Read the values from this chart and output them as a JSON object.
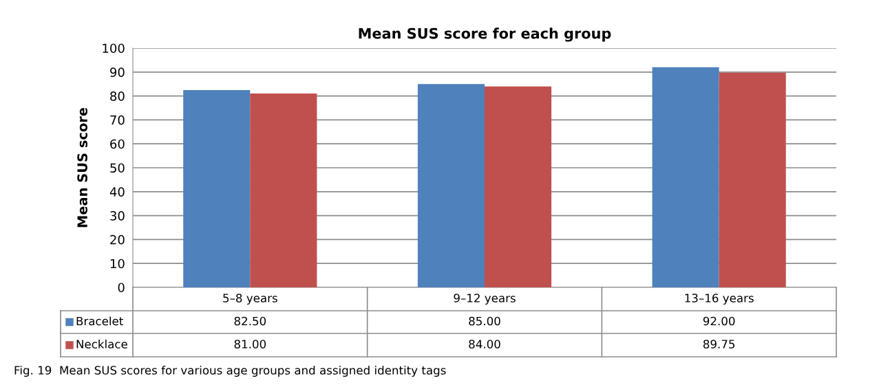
{
  "chart_data": {
    "type": "bar",
    "title": "Mean SUS score for each group",
    "ylabel": "Mean SUS score",
    "categories": [
      "5–8 years",
      "9–12 years",
      "13–16 years"
    ],
    "series": [
      {
        "name": "Bracelet",
        "color": "#4f81bd",
        "values": [
          82.5,
          85,
          92
        ],
        "value_labels": [
          "82.50",
          "85.00",
          "92.00"
        ]
      },
      {
        "name": "Necklace",
        "color": "#c0504d",
        "values": [
          81,
          84,
          89.75
        ],
        "value_labels": [
          "81.00",
          "84.00",
          "89.75"
        ]
      }
    ],
    "ylim": [
      0,
      100
    ],
    "yticks": [
      0,
      10,
      20,
      30,
      40,
      50,
      60,
      70,
      80,
      90,
      100
    ],
    "grid": "y",
    "legend": "bottom",
    "annotations": [
      "Fig. 19  Mean SUS scores for various age groups and assigned identity tags"
    ]
  }
}
